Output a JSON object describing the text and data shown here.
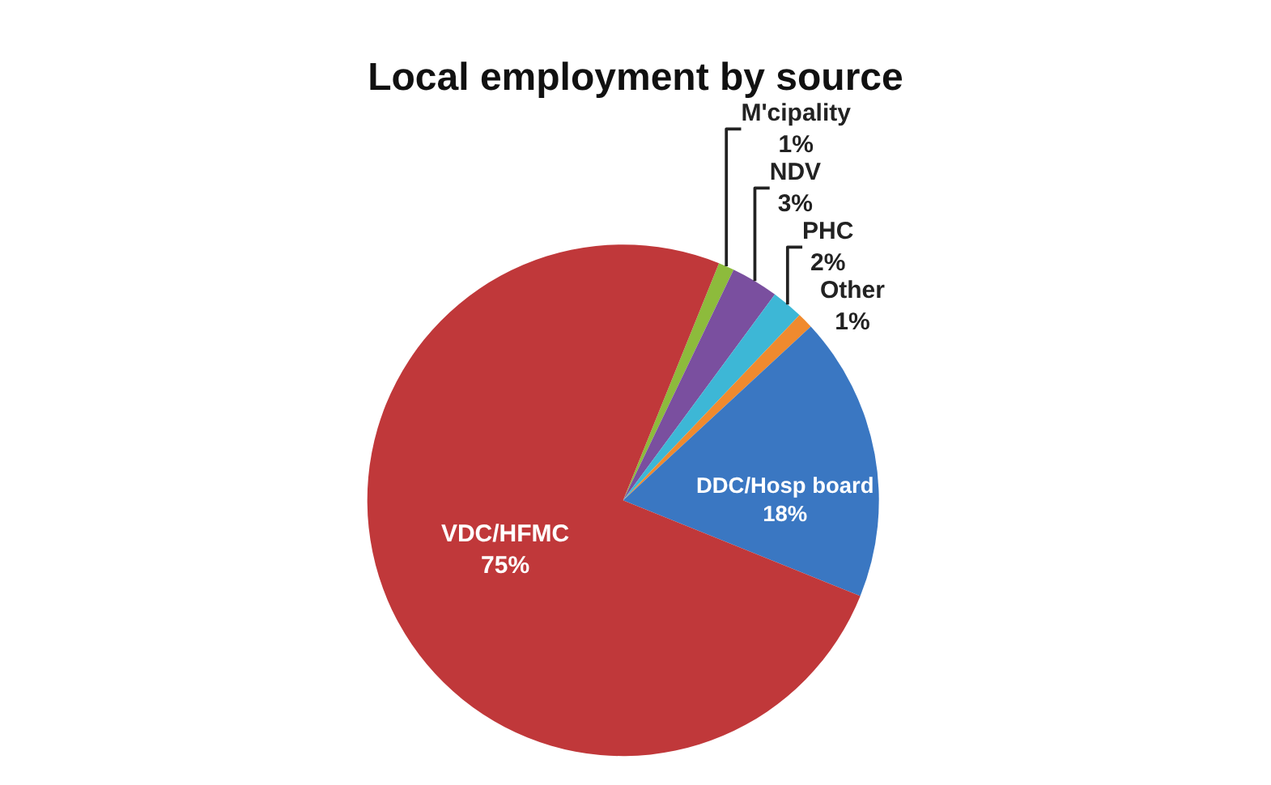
{
  "chart_data": {
    "type": "pie",
    "title": "Local employment by source",
    "categories": [
      "M'cipality",
      "NDV",
      "PHC",
      "Other",
      "DDC/Hosp board",
      "VDC/HFMC"
    ],
    "values": [
      1,
      3,
      2,
      1,
      18,
      75
    ],
    "value_labels": [
      "1%",
      "3%",
      "2%",
      "1%",
      "18%",
      "75%"
    ],
    "colors": [
      "#8dbb3c",
      "#7a4f9f",
      "#3db7d6",
      "#f08a2e",
      "#3a77c2",
      "#c0383a"
    ],
    "legend": false
  }
}
